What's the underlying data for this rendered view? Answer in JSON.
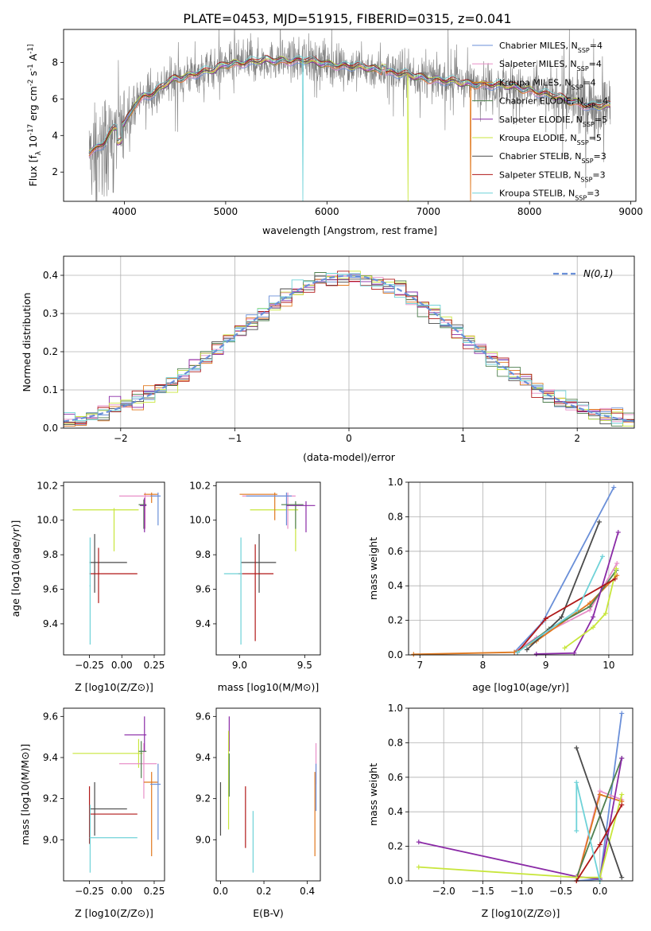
{
  "figure_title": "PLATE=0453, MJD=51915, FIBERID=0315, z=0.041",
  "colors": {
    "Chabrier MILES": "#6a8fd8",
    "Salpeter MILES": "#e88fc8",
    "Kroupa MILES": "#e0781e",
    "Chabrier ELODIE": "#4f7f4f",
    "Salpeter ELODIE": "#8a2aa6",
    "Kroupa ELODIE": "#c8e63c",
    "Chabrier STELIB": "#4a4a4a",
    "Salpeter STELIB": "#b01818",
    "Kroupa STELIB": "#6fd2d8",
    "observed": "#7f7f7f",
    "normal": "#6a8fd8"
  },
  "chart_data": [
    {
      "id": "spectrum",
      "type": "line",
      "title": "PLATE=0453, MJD=51915, FIBERID=0315, z=0.041",
      "xlabel": "wavelength [Angstrom, rest frame]",
      "ylabel": "Flux [f_λ 10^-17 erg cm^-2 s^-1 A^-1]",
      "xlim": [
        3400,
        9050
      ],
      "ylim": [
        0.4,
        9.8
      ],
      "xticks": [
        4000,
        5000,
        6000,
        7000,
        8000,
        9000
      ],
      "yticks": [
        2,
        4,
        6,
        8
      ],
      "grid": false,
      "legend": "right",
      "legend_entries": [
        {
          "name": "Chabrier MILES",
          "nssp": "4"
        },
        {
          "name": "Salpeter MILES",
          "nssp": "4"
        },
        {
          "name": "Kroupa MILES",
          "nssp": "4"
        },
        {
          "name": "Chabrier ELODIE",
          "nssp": "4"
        },
        {
          "name": "Salpeter ELODIE",
          "nssp": "5"
        },
        {
          "name": "Kroupa ELODIE",
          "nssp": "5"
        },
        {
          "name": "Chabrier STELIB",
          "nssp": "3"
        },
        {
          "name": "Salpeter STELIB",
          "nssp": "3"
        },
        {
          "name": "Kroupa STELIB",
          "nssp": "3"
        }
      ],
      "model_continuum": {
        "x": [
          3650,
          3720,
          3800,
          3900,
          4000,
          4100,
          4200,
          4300,
          4400,
          4500,
          4600,
          4700,
          4800,
          4900,
          5000,
          5200,
          5400,
          5600,
          5800,
          6000,
          6200,
          6400,
          6600,
          6800,
          7000,
          7200,
          7400,
          7600,
          7800,
          8000,
          8200,
          8400,
          8600,
          8800
        ],
        "y": [
          3.1,
          3.3,
          3.6,
          4.4,
          4.6,
          5.7,
          6.2,
          6.3,
          6.8,
          7.1,
          7.2,
          7.4,
          7.5,
          7.6,
          7.9,
          8.0,
          8.1,
          8.1,
          8.1,
          7.9,
          7.8,
          7.7,
          7.5,
          7.3,
          7.1,
          7.0,
          6.8,
          6.8,
          6.7,
          6.5,
          6.2,
          5.9,
          5.6,
          5.6
        ]
      },
      "dips": [
        {
          "series": "Kroupa STELIB",
          "x": 5760
        },
        {
          "series": "Kroupa ELODIE",
          "x": 6800
        },
        {
          "series": "Kroupa MILES",
          "x": 7420
        }
      ]
    },
    {
      "id": "residuals",
      "type": "histogram",
      "xlabel": "(data-model)/error",
      "ylabel": "Normed distribution",
      "xlim": [
        -2.5,
        2.5
      ],
      "ylim": [
        0,
        0.45
      ],
      "xticks": [
        -2,
        -1,
        0,
        1,
        2
      ],
      "yticks": [
        0,
        0.1,
        0.2,
        0.3,
        0.4
      ],
      "grid": true,
      "legend": "top-right",
      "legend_label": "N(0,1)",
      "bin_width": 0.1
    },
    {
      "id": "age-vs-z",
      "type": "errorbar",
      "xlabel": "Z [log10(Z/Z⊙)]",
      "ylabel": "age [log10(age/yr)]",
      "xlim": [
        -0.45,
        0.33
      ],
      "ylim": [
        9.22,
        10.22
      ],
      "xticks": [
        -0.25,
        0.0,
        0.25
      ],
      "xticklabels": [
        "−0.25",
        "0.00",
        "0.25"
      ],
      "yticks": [
        9.4,
        9.6,
        9.8,
        10.0,
        10.2
      ],
      "grid": false,
      "points": [
        {
          "series": "Kroupa ELODIE",
          "x": -0.06,
          "xlo": -0.38,
          "xhi": 0.13,
          "y": 10.06,
          "ylo": 9.82,
          "yhi": 10.07
        },
        {
          "series": "Salpeter MILES",
          "x": 0.18,
          "xlo": -0.02,
          "xhi": 0.27,
          "y": 10.14,
          "ylo": 9.95,
          "yhi": 10.16
        },
        {
          "series": "Kroupa MILES",
          "x": 0.23,
          "xlo": 0.17,
          "xhi": 0.28,
          "y": 10.15,
          "ylo": 10.1,
          "yhi": 10.16
        },
        {
          "series": "Chabrier MILES",
          "x": 0.28,
          "xlo": 0.22,
          "xhi": 0.3,
          "y": 10.14,
          "ylo": 9.97,
          "yhi": 10.16
        },
        {
          "series": "Chabrier ELODIE",
          "x": 0.17,
          "xlo": 0.13,
          "xhi": 0.19,
          "y": 10.09,
          "ylo": 9.95,
          "yhi": 10.12
        },
        {
          "series": "Salpeter ELODIE",
          "x": 0.175,
          "xlo": 0.14,
          "xhi": 0.19,
          "y": 10.085,
          "ylo": 9.93,
          "yhi": 10.13
        },
        {
          "series": "Chabrier STELIB",
          "x": -0.21,
          "xlo": -0.25,
          "xhi": 0.04,
          "y": 9.755,
          "ylo": 9.58,
          "yhi": 9.92
        },
        {
          "series": "Salpeter STELIB",
          "x": -0.18,
          "xlo": -0.25,
          "xhi": 0.12,
          "y": 9.69,
          "ylo": 9.52,
          "yhi": 9.84
        },
        {
          "series": "Kroupa STELIB",
          "x": -0.245,
          "xlo": -0.25,
          "xhi": -0.24,
          "y": 9.62,
          "ylo": 9.28,
          "yhi": 9.9
        }
      ]
    },
    {
      "id": "age-vs-mass",
      "type": "errorbar",
      "xlabel": "mass [log10(M/M⊙)]",
      "ylabel": "",
      "xlim": [
        8.82,
        9.62
      ],
      "ylim": [
        9.22,
        10.22
      ],
      "xticks": [
        9.0,
        9.5
      ],
      "xticklabels": [
        "9.0",
        "9.5"
      ],
      "yticks": [
        9.4,
        9.6,
        9.8,
        10.0,
        10.2
      ],
      "grid": false,
      "points": [
        {
          "series": "Kroupa ELODIE",
          "x": 9.43,
          "xlo": 9.08,
          "xhi": 9.45,
          "y": 10.06,
          "ylo": 9.82,
          "yhi": 10.08
        },
        {
          "series": "Salpeter MILES",
          "x": 9.37,
          "xlo": 9.02,
          "xhi": 9.43,
          "y": 10.14,
          "ylo": 9.95,
          "yhi": 10.16
        },
        {
          "series": "Kroupa MILES",
          "x": 9.27,
          "xlo": 9.0,
          "xhi": 9.29,
          "y": 10.15,
          "ylo": 10.0,
          "yhi": 10.16
        },
        {
          "series": "Chabrier MILES",
          "x": 9.36,
          "xlo": 9.05,
          "xhi": 9.4,
          "y": 10.14,
          "ylo": 9.97,
          "yhi": 10.16
        },
        {
          "series": "Chabrier ELODIE",
          "x": 9.43,
          "xlo": 9.32,
          "xhi": 9.49,
          "y": 10.09,
          "ylo": 9.95,
          "yhi": 10.11
        },
        {
          "series": "Salpeter ELODIE",
          "x": 9.51,
          "xlo": 9.36,
          "xhi": 9.58,
          "y": 10.085,
          "ylo": 9.93,
          "yhi": 10.11
        },
        {
          "series": "Chabrier STELIB",
          "x": 9.15,
          "xlo": 9.01,
          "xhi": 9.28,
          "y": 9.755,
          "ylo": 9.58,
          "yhi": 9.92
        },
        {
          "series": "Salpeter STELIB",
          "x": 9.12,
          "xlo": 8.99,
          "xhi": 9.26,
          "y": 9.69,
          "ylo": 9.3,
          "yhi": 9.86
        },
        {
          "series": "Kroupa STELIB",
          "x": 9.01,
          "xlo": 8.88,
          "xhi": 9.02,
          "y": 9.69,
          "ylo": 9.28,
          "yhi": 9.9
        }
      ]
    },
    {
      "id": "weight-vs-age",
      "type": "line",
      "xlabel": "age [log10(age/yr)]",
      "ylabel": "mass weight",
      "xlim": [
        6.82,
        10.38
      ],
      "ylim": [
        0,
        1.0
      ],
      "xticks": [
        7,
        8,
        9,
        10
      ],
      "yticks": [
        0.0,
        0.2,
        0.4,
        0.6,
        0.8,
        1.0
      ],
      "grid": true,
      "series": [
        {
          "name": "Chabrier MILES",
          "x": [
            8.5,
            8.95,
            10.08
          ],
          "y": [
            0.015,
            0.19,
            0.97
          ]
        },
        {
          "name": "Salpeter MILES",
          "x": [
            8.5,
            8.85,
            9.7,
            10.13
          ],
          "y": [
            0.015,
            0.1,
            0.26,
            0.53
          ]
        },
        {
          "name": "Kroupa MILES",
          "x": [
            6.9,
            8.5,
            8.85,
            9.7,
            10.13
          ],
          "y": [
            0.003,
            0.015,
            0.08,
            0.3,
            0.46
          ]
        },
        {
          "name": "Chabrier ELODIE",
          "x": [
            8.55,
            9.05,
            9.7,
            10.12
          ],
          "y": [
            0.015,
            0.15,
            0.28,
            0.49
          ]
        },
        {
          "name": "Salpeter ELODIE",
          "x": [
            8.85,
            9.45,
            9.75,
            10.15
          ],
          "y": [
            0.005,
            0.01,
            0.22,
            0.71
          ]
        },
        {
          "name": "Kroupa ELODIE",
          "x": [
            9.3,
            9.75,
            9.95,
            10.12
          ],
          "y": [
            0.04,
            0.16,
            0.24,
            0.5
          ]
        },
        {
          "name": "Chabrier STELIB",
          "x": [
            8.7,
            9.25,
            9.85
          ],
          "y": [
            0.03,
            0.22,
            0.77
          ]
        },
        {
          "name": "Salpeter STELIB",
          "x": [
            8.55,
            9.0,
            10.1
          ],
          "y": [
            0.015,
            0.21,
            0.44
          ]
        },
        {
          "name": "Kroupa STELIB",
          "x": [
            8.55,
            9.5,
            9.9
          ],
          "y": [
            0.015,
            0.26,
            0.57
          ]
        }
      ]
    },
    {
      "id": "mass-vs-z",
      "type": "errorbar",
      "xlabel": "Z [log10(Z/Z⊙)]",
      "ylabel": "mass [log10(M/M⊙)]",
      "xlim": [
        -0.45,
        0.33
      ],
      "ylim": [
        8.8,
        9.64
      ],
      "xticks": [
        -0.25,
        0.0,
        0.25
      ],
      "xticklabels": [
        "−0.25",
        "0.00",
        "0.25"
      ],
      "yticks": [
        9.0,
        9.2,
        9.4,
        9.6
      ],
      "grid": false,
      "points": [
        {
          "series": "Kroupa ELODIE",
          "x": 0.13,
          "xlo": -0.38,
          "xhi": 0.16,
          "y": 9.42,
          "ylo": 9.35,
          "yhi": 9.49
        },
        {
          "series": "Salpeter MILES",
          "x": 0.17,
          "xlo": -0.02,
          "xhi": 0.27,
          "y": 9.37,
          "ylo": 9.2,
          "yhi": 9.47
        },
        {
          "series": "Kroupa MILES",
          "x": 0.23,
          "xlo": 0.17,
          "xhi": 0.28,
          "y": 9.28,
          "ylo": 8.92,
          "yhi": 9.33
        },
        {
          "series": "Chabrier MILES",
          "x": 0.28,
          "xlo": 0.22,
          "xhi": 0.3,
          "y": 9.27,
          "ylo": 9.0,
          "yhi": 9.37
        },
        {
          "series": "Chabrier ELODIE",
          "x": 0.15,
          "xlo": 0.13,
          "xhi": 0.19,
          "y": 9.43,
          "ylo": 9.3,
          "yhi": 9.48
        },
        {
          "series": "Salpeter ELODIE",
          "x": 0.175,
          "xlo": 0.02,
          "xhi": 0.19,
          "y": 9.51,
          "ylo": 9.43,
          "yhi": 9.6
        },
        {
          "series": "Chabrier STELIB",
          "x": -0.21,
          "xlo": -0.25,
          "xhi": 0.04,
          "y": 9.15,
          "ylo": 9.02,
          "yhi": 9.28
        },
        {
          "series": "Salpeter STELIB",
          "x": -0.25,
          "xlo": -0.25,
          "xhi": 0.12,
          "y": 9.125,
          "ylo": 8.98,
          "yhi": 9.26
        },
        {
          "series": "Kroupa STELIB",
          "x": -0.245,
          "xlo": -0.25,
          "xhi": 0.12,
          "y": 9.01,
          "ylo": 8.84,
          "yhi": 9.17
        }
      ]
    },
    {
      "id": "mass-vs-ebv",
      "type": "errorbar",
      "xlabel": "E(B-V)",
      "ylabel": "",
      "xlim": [
        -0.02,
        0.46
      ],
      "ylim": [
        8.8,
        9.64
      ],
      "xticks": [
        0.0,
        0.2,
        0.4
      ],
      "xticklabels": [
        "0.0",
        "0.2",
        "0.4"
      ],
      "yticks": [
        9.0,
        9.2,
        9.4,
        9.6
      ],
      "grid": false,
      "points": [
        {
          "series": "Chabrier STELIB",
          "x": 0.0,
          "y": 9.15,
          "ylo": 9.02,
          "yhi": 9.28
        },
        {
          "series": "Salpeter ELODIE",
          "x": 0.04,
          "y": 9.51,
          "ylo": 9.43,
          "yhi": 9.6
        },
        {
          "series": "Kroupa ELODIE",
          "x": 0.037,
          "y": 9.3,
          "ylo": 9.05,
          "yhi": 9.53
        },
        {
          "series": "Chabrier ELODIE",
          "x": 0.04,
          "y": 9.3,
          "ylo": 9.21,
          "yhi": 9.42
        },
        {
          "series": "Salpeter STELIB",
          "x": 0.115,
          "y": 9.1,
          "ylo": 8.96,
          "yhi": 9.26
        },
        {
          "series": "Kroupa STELIB",
          "x": 0.15,
          "y": 8.99,
          "ylo": 8.84,
          "yhi": 9.14
        },
        {
          "series": "Salpeter MILES",
          "x": 0.44,
          "y": 9.37,
          "ylo": 9.27,
          "yhi": 9.47
        },
        {
          "series": "Kroupa MILES",
          "x": 0.435,
          "y": 9.1,
          "ylo": 8.92,
          "yhi": 9.33
        },
        {
          "series": "Chabrier MILES",
          "x": 0.44,
          "y": 9.26,
          "ylo": 9.14,
          "yhi": 9.37
        }
      ]
    },
    {
      "id": "weight-vs-z",
      "type": "line",
      "xlabel": "Z [log10(Z/Z⊙)]",
      "ylabel": "mass weight",
      "xlim": [
        -2.45,
        0.42
      ],
      "ylim": [
        0,
        1.0
      ],
      "xticks": [
        -2.0,
        -1.5,
        -1.0,
        -0.5,
        0.0
      ],
      "xticklabels": [
        "−2.0",
        "−1.5",
        "−1.0",
        "−0.5",
        "0.0"
      ],
      "yticks": [
        0.0,
        0.2,
        0.4,
        0.6,
        0.8,
        1.0
      ],
      "grid": true,
      "series": [
        {
          "name": "Chabrier MILES",
          "x": [
            -0.3,
            0.0,
            0.28
          ],
          "y": [
            0.0,
            0.01,
            0.97
          ]
        },
        {
          "name": "Salpeter MILES",
          "x": [
            -0.3,
            0.0,
            0.28
          ],
          "y": [
            0.0,
            0.52,
            0.47
          ]
        },
        {
          "name": "Kroupa MILES",
          "x": [
            -0.3,
            0.0,
            0.28
          ],
          "y": [
            0.0,
            0.5,
            0.46
          ]
        },
        {
          "name": "Chabrier ELODIE",
          "x": [
            -0.3,
            0.28
          ],
          "y": [
            0.02,
            0.71
          ]
        },
        {
          "name": "Salpeter ELODIE",
          "x": [
            -2.32,
            -0.3,
            0.0,
            0.28
          ],
          "y": [
            0.225,
            0.025,
            0.01,
            0.71
          ]
        },
        {
          "name": "Kroupa ELODIE",
          "x": [
            -2.32,
            -0.3,
            0.0,
            0.28
          ],
          "y": [
            0.08,
            0.02,
            0.02,
            0.5
          ]
        },
        {
          "name": "Chabrier STELIB",
          "x": [
            -0.3,
            0.28
          ],
          "y": [
            0.77,
            0.02
          ]
        },
        {
          "name": "Salpeter STELIB",
          "x": [
            -0.3,
            0.0,
            0.28
          ],
          "y": [
            0.0,
            0.21,
            0.44
          ]
        },
        {
          "name": "Kroupa STELIB",
          "x": [
            -0.3,
            -0.3,
            0.0
          ],
          "y": [
            0.29,
            0.57,
            0.0
          ]
        }
      ]
    }
  ]
}
